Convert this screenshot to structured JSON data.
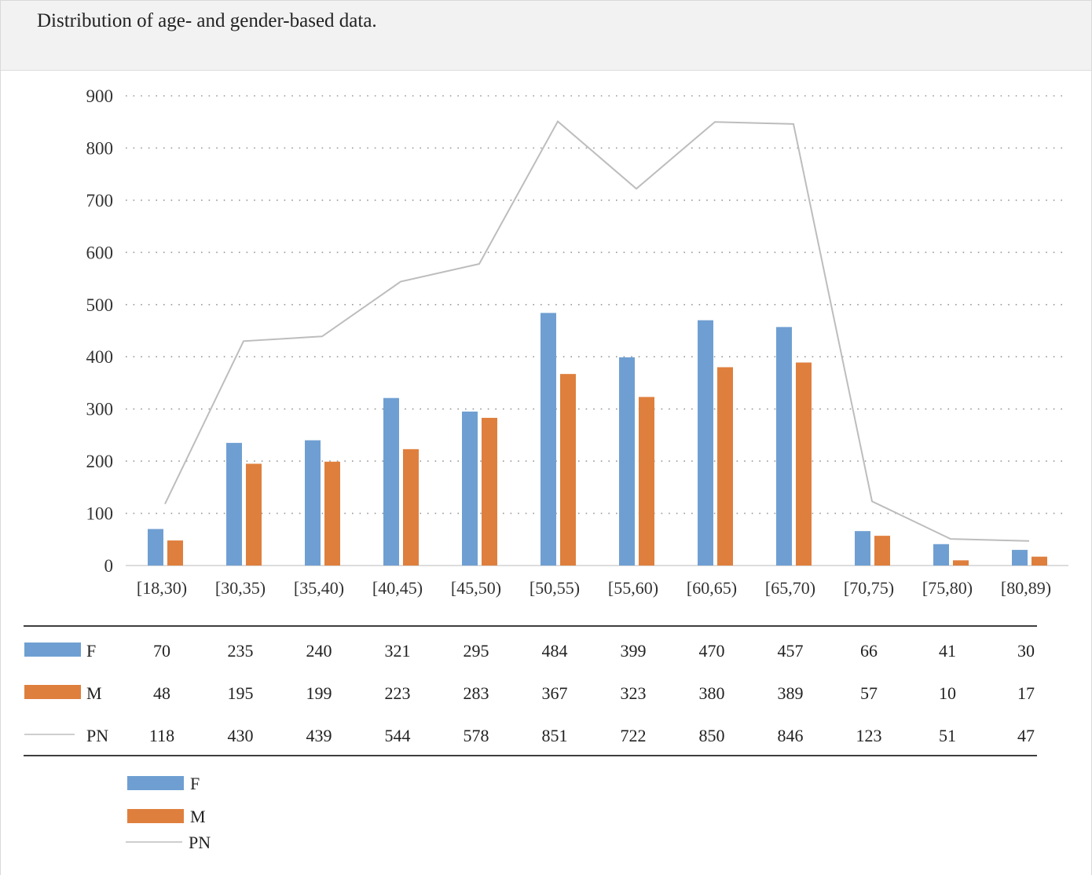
{
  "caption": "Distribution of age- and gender-based data.",
  "colors": {
    "F": "#6f9fd2",
    "M": "#df7f3d",
    "PN": "#bdbdbd",
    "grid": "#9a9a9a"
  },
  "chart_data": {
    "type": "bar",
    "title": "",
    "xlabel": "",
    "ylabel": "",
    "ylim": [
      0,
      900
    ],
    "yticks": [
      0,
      100,
      200,
      300,
      400,
      500,
      600,
      700,
      800,
      900
    ],
    "grid": "dotted horizontal",
    "categories": [
      "[18,30)",
      "[30,35)",
      "[35,40)",
      "[40,45)",
      "[45,50)",
      "[50,55)",
      "[55,60)",
      "[60,65)",
      "[65,70)",
      "[70,75)",
      "[75,80)",
      "[80,89)"
    ],
    "series": [
      {
        "name": "F",
        "type": "bar",
        "values": [
          70,
          235,
          240,
          321,
          295,
          484,
          399,
          470,
          457,
          66,
          41,
          30
        ]
      },
      {
        "name": "M",
        "type": "bar",
        "values": [
          48,
          195,
          199,
          223,
          283,
          367,
          323,
          380,
          389,
          57,
          10,
          17
        ]
      },
      {
        "name": "PN",
        "type": "line",
        "values": [
          118,
          430,
          439,
          544,
          578,
          851,
          722,
          850,
          846,
          123,
          51,
          47
        ]
      }
    ],
    "data_table": true,
    "legend": "bottom-left"
  }
}
